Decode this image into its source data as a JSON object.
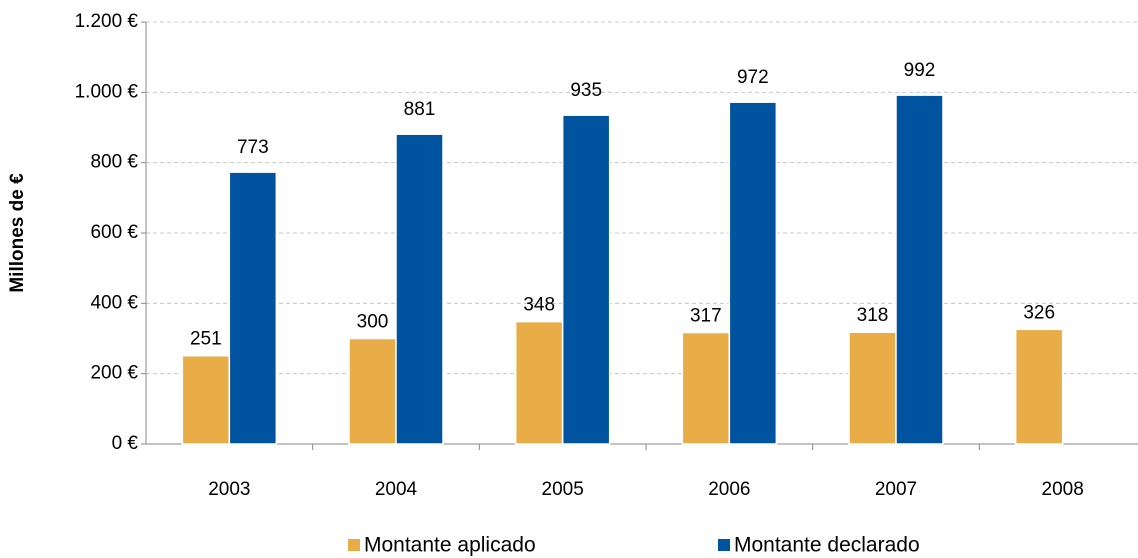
{
  "chart_data": {
    "type": "bar",
    "y_label": "Millones de €",
    "categories": [
      "2003",
      "2004",
      "2005",
      "2006",
      "2007",
      "2008"
    ],
    "series": [
      {
        "name": "Montante aplicado",
        "color": "#e9ad48",
        "values": [
          251,
          300,
          348,
          317,
          318,
          326
        ]
      },
      {
        "name": "Montante declarado",
        "color": "#00539f",
        "values": [
          773,
          881,
          935,
          972,
          992,
          null
        ]
      }
    ],
    "ylim": [
      0,
      1200
    ],
    "yticks": [
      {
        "value": 0,
        "label": "0 €"
      },
      {
        "value": 200,
        "label": "200 €"
      },
      {
        "value": 400,
        "label": "400 €"
      },
      {
        "value": 600,
        "label": "600 €"
      },
      {
        "value": 800,
        "label": "800 €"
      },
      {
        "value": 1000,
        "label": "1.000 €"
      },
      {
        "value": 1200,
        "label": "1.200 €"
      }
    ],
    "grid": true,
    "legend": "bottom"
  }
}
